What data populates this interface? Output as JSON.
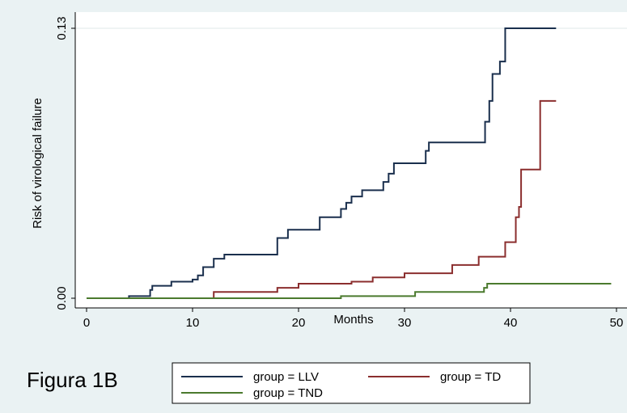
{
  "figure_label": "Figura 1B",
  "chart_data": {
    "type": "line",
    "step": true,
    "xlabel": "Months",
    "ylabel": "Risk of virological failure",
    "xlim": [
      0,
      50
    ],
    "ylim": [
      0,
      0.13
    ],
    "x_ticks": [
      0,
      10,
      20,
      30,
      40,
      50
    ],
    "x_tick_labels": [
      "0",
      "10",
      "20",
      "30",
      "40",
      "50"
    ],
    "y_ticks": [
      0,
      0.13
    ],
    "y_tick_labels": [
      "0.00",
      "0.13"
    ],
    "grid": "horizontal at 0.13",
    "legend_position": "bottom",
    "series": [
      {
        "name": "group = LLV",
        "color": "#1a2f4d",
        "x": [
          0,
          4,
          6,
          6.2,
          8,
          10,
          10.5,
          11,
          12,
          13,
          18,
          19,
          22,
          24,
          24.5,
          25,
          26,
          28,
          28.5,
          29,
          32,
          32.3,
          37.6,
          38,
          38.3,
          39,
          39.5,
          44.3
        ],
        "y": [
          0,
          0.001,
          0.004,
          0.006,
          0.008,
          0.009,
          0.011,
          0.015,
          0.019,
          0.021,
          0.029,
          0.033,
          0.039,
          0.043,
          0.046,
          0.049,
          0.052,
          0.056,
          0.06,
          0.065,
          0.071,
          0.075,
          0.085,
          0.095,
          0.108,
          0.114,
          0.13,
          0.13
        ]
      },
      {
        "name": "group = TD",
        "color": "#8b2e2e",
        "x": [
          0,
          12,
          18,
          20,
          25,
          27,
          30,
          34.5,
          37,
          39.5,
          40.5,
          40.8,
          41,
          42.8,
          44.3
        ],
        "y": [
          0,
          0.003,
          0.005,
          0.007,
          0.008,
          0.01,
          0.012,
          0.016,
          0.02,
          0.027,
          0.039,
          0.044,
          0.062,
          0.095,
          0.095
        ]
      },
      {
        "name": "group = TND",
        "color": "#4b7a2e",
        "x": [
          0,
          24,
          31,
          37.5,
          37.8,
          49.5
        ],
        "y": [
          0,
          0.001,
          0.003,
          0.005,
          0.007,
          0.007
        ]
      }
    ]
  }
}
